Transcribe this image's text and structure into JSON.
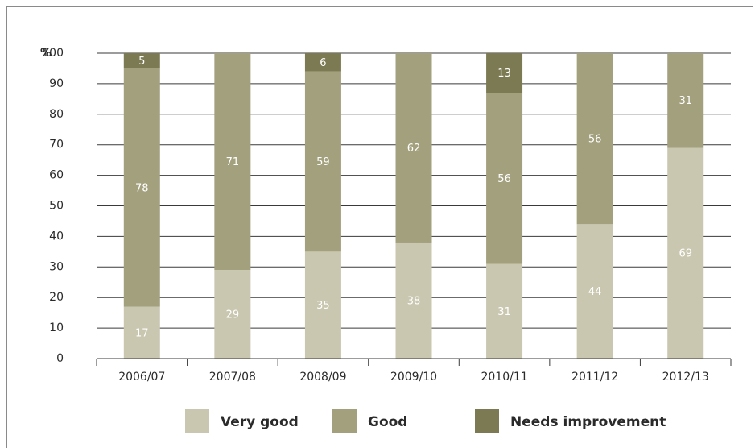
{
  "chart_data": {
    "type": "bar",
    "stacked": true,
    "ylabel": "%",
    "ylim": [
      0,
      100
    ],
    "yticks": [
      0,
      10,
      20,
      30,
      40,
      50,
      60,
      70,
      80,
      90,
      100
    ],
    "categories": [
      "2006/07",
      "2007/08",
      "2008/09",
      "2009/10",
      "2010/11",
      "2011/12",
      "2012/13"
    ],
    "series": [
      {
        "name": "Very good",
        "color": "#c9c7b0",
        "values": [
          17,
          29,
          35,
          38,
          31,
          44,
          69
        ]
      },
      {
        "name": "Good",
        "color": "#a3a07e",
        "values": [
          78,
          71,
          59,
          62,
          56,
          56,
          31
        ]
      },
      {
        "name": "Needs improvement",
        "color": "#7c7a52",
        "values": [
          5,
          0,
          6,
          0,
          13,
          0,
          0
        ]
      }
    ],
    "grid": true,
    "legend_position": "bottom"
  }
}
